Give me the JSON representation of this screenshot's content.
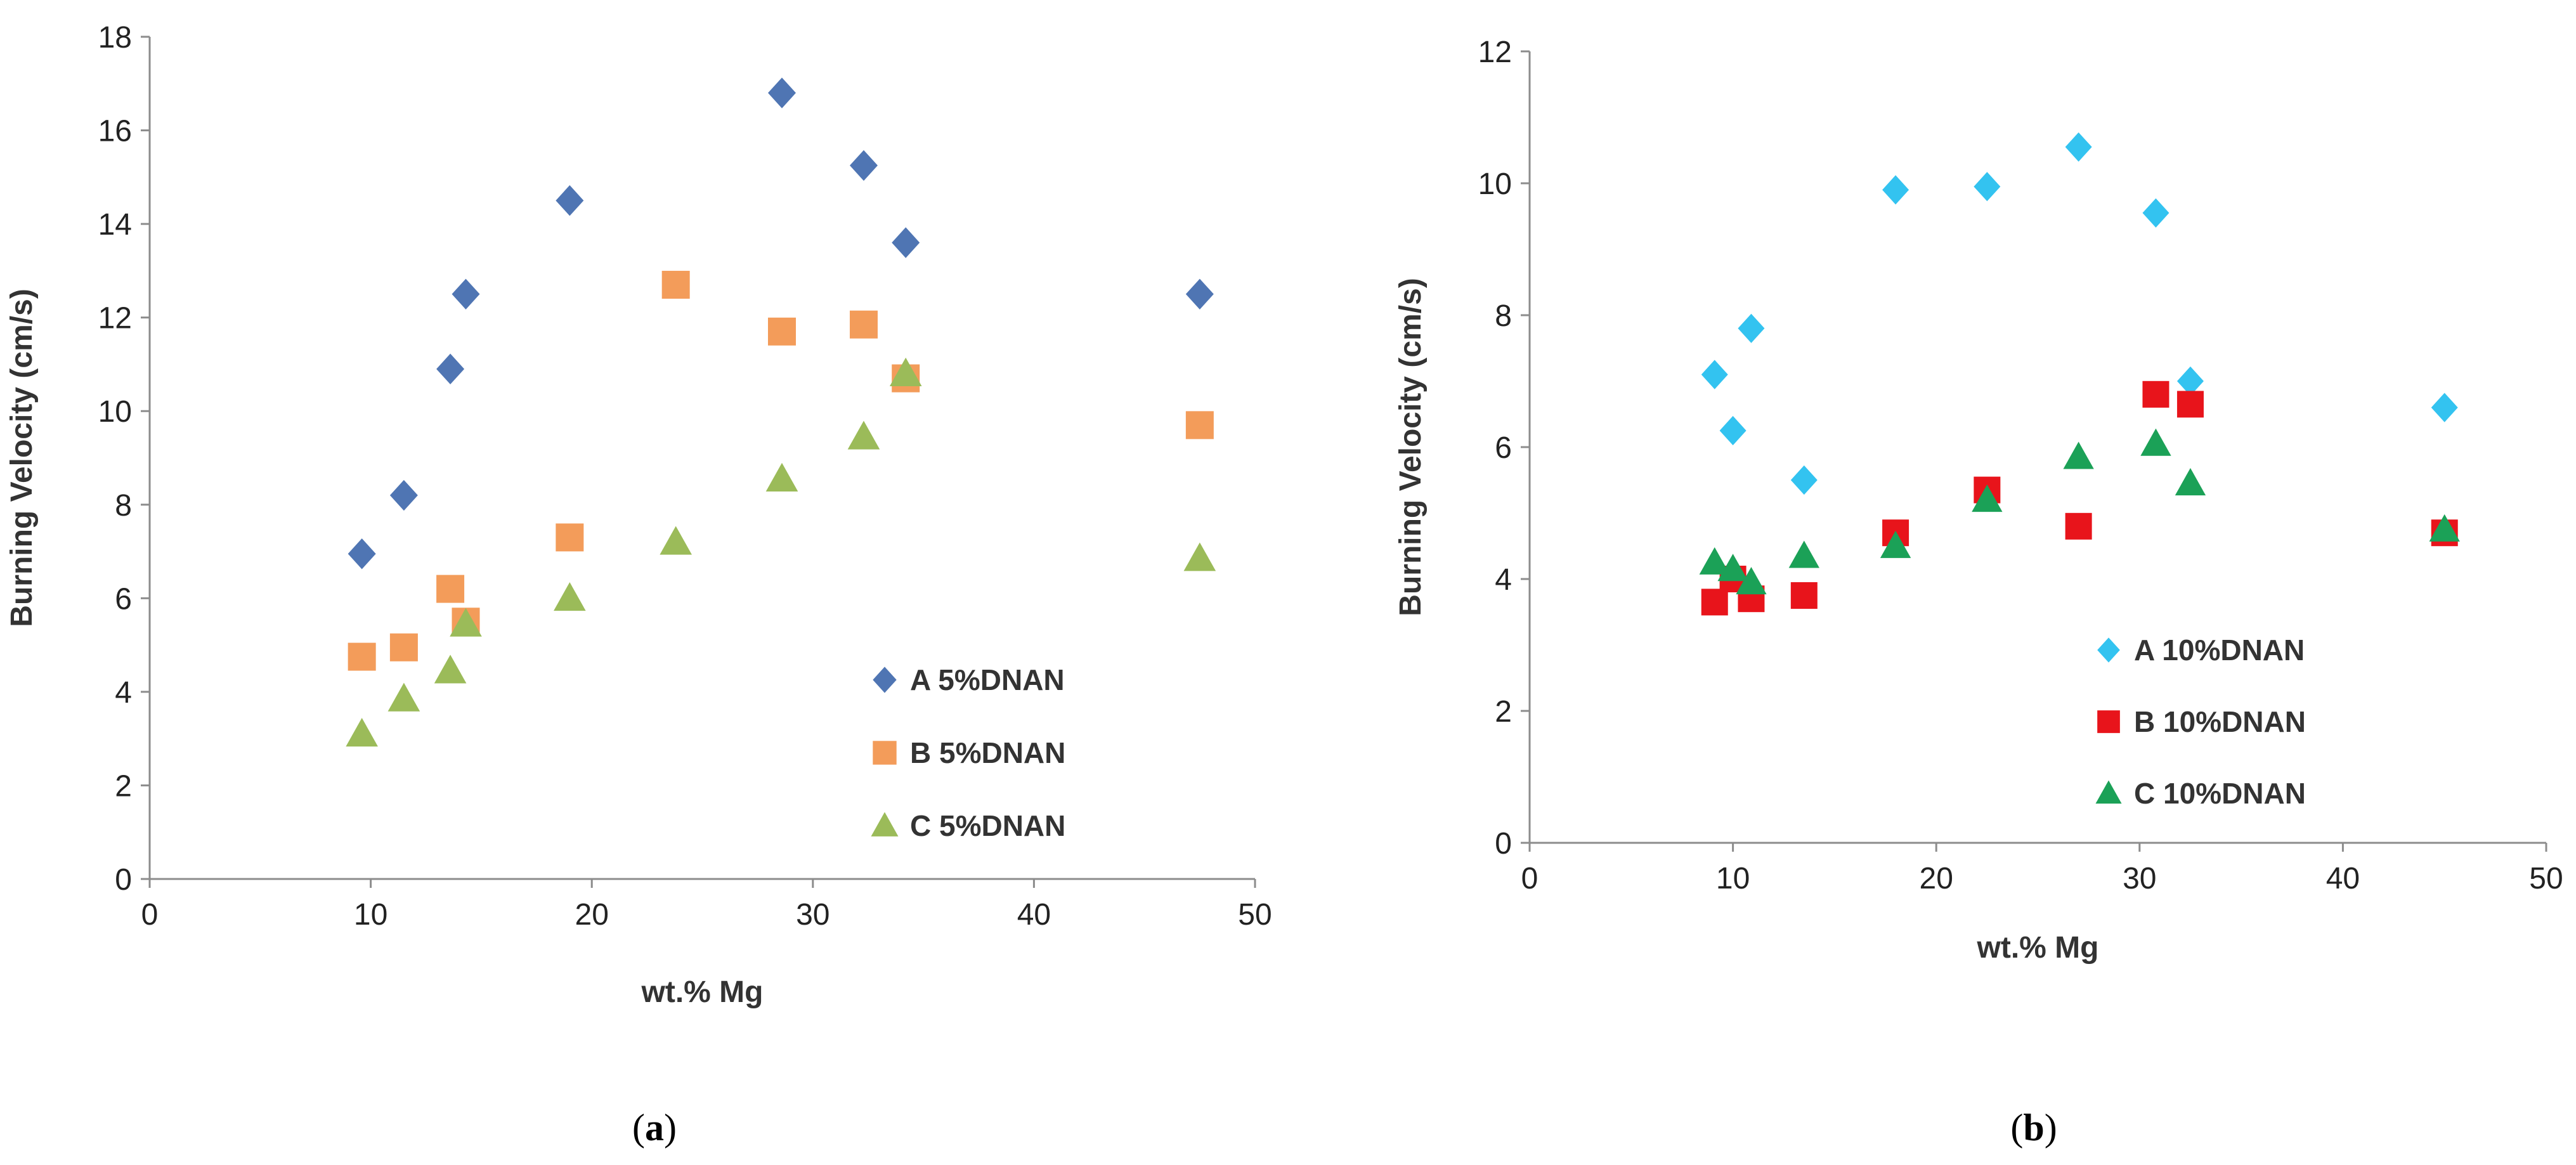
{
  "chart_data": [
    {
      "id": "a",
      "type": "scatter",
      "caption": "a",
      "xlabel": "wt.% Mg",
      "ylabel": "Burning Velocity (cm/s)",
      "xlim": [
        0,
        50
      ],
      "ylim": [
        0,
        18
      ],
      "xticks": [
        0,
        10,
        20,
        30,
        40,
        50
      ],
      "yticks": [
        0,
        2,
        4,
        6,
        8,
        10,
        12,
        14,
        16,
        18
      ],
      "grid": false,
      "legend_position": "bottom-right",
      "series": [
        {
          "name": "A 5%DNAN",
          "marker": "diamond",
          "color": "#4f75b3",
          "x": [
            9.6,
            11.5,
            13.6,
            14.3,
            19.0,
            28.6,
            32.3,
            34.2,
            47.5
          ],
          "y": [
            6.95,
            8.2,
            10.9,
            12.5,
            14.5,
            16.8,
            15.25,
            13.6,
            12.5
          ]
        },
        {
          "name": "B 5%DNAN",
          "marker": "square",
          "color": "#f39c5a",
          "x": [
            9.6,
            11.5,
            13.6,
            14.3,
            19.0,
            23.8,
            28.6,
            32.3,
            34.2,
            47.5
          ],
          "y": [
            4.75,
            4.95,
            6.2,
            5.5,
            7.3,
            12.7,
            11.7,
            11.85,
            10.7,
            9.7
          ]
        },
        {
          "name": "C 5%DNAN",
          "marker": "triangle",
          "color": "#9bbb59",
          "x": [
            9.6,
            11.5,
            13.6,
            14.3,
            19.0,
            23.8,
            28.6,
            32.3,
            34.2,
            47.5
          ],
          "y": [
            3.1,
            3.85,
            4.45,
            5.45,
            6.0,
            7.2,
            8.55,
            9.45,
            10.8,
            6.85
          ]
        }
      ]
    },
    {
      "id": "b",
      "type": "scatter",
      "caption": "b",
      "xlabel": "wt.% Mg",
      "ylabel": "Burning Velocity (cm/s)",
      "xlim": [
        0,
        50
      ],
      "ylim": [
        0,
        12
      ],
      "xticks": [
        0,
        10,
        20,
        30,
        40,
        50
      ],
      "yticks": [
        0,
        2,
        4,
        6,
        8,
        10,
        12
      ],
      "grid": false,
      "legend_position": "bottom-right",
      "series": [
        {
          "name": "A 10%DNAN",
          "marker": "diamond",
          "color": "#33c3f0",
          "x": [
            9.1,
            10.0,
            10.9,
            13.5,
            18.0,
            22.5,
            27.0,
            30.8,
            32.5,
            45.0
          ],
          "y": [
            7.1,
            6.25,
            7.8,
            5.5,
            9.9,
            9.95,
            10.55,
            9.55,
            7.0,
            6.6
          ]
        },
        {
          "name": "B 10%DNAN",
          "marker": "square",
          "color": "#e8141b",
          "x": [
            9.1,
            10.0,
            10.9,
            13.5,
            18.0,
            22.5,
            27.0,
            30.8,
            32.5,
            45.0
          ],
          "y": [
            3.65,
            4.0,
            3.7,
            3.75,
            4.7,
            5.35,
            4.8,
            6.8,
            6.65,
            4.7
          ]
        },
        {
          "name": "C 10%DNAN",
          "marker": "triangle",
          "color": "#1ba157",
          "x": [
            9.1,
            10.0,
            10.9,
            13.5,
            18.0,
            22.5,
            27.0,
            30.8,
            32.5,
            45.0
          ],
          "y": [
            4.25,
            4.15,
            3.95,
            4.35,
            4.5,
            5.2,
            5.85,
            6.05,
            5.45,
            4.75
          ]
        }
      ]
    }
  ]
}
